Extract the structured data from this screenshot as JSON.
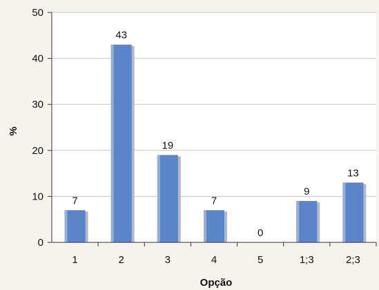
{
  "chart_data": {
    "type": "bar",
    "categories": [
      "1",
      "2",
      "3",
      "4",
      "5",
      "1;3",
      "2;3"
    ],
    "values": [
      7,
      43,
      19,
      7,
      0,
      9,
      13
    ],
    "data_labels": [
      "7",
      "43",
      "19",
      "7",
      "0",
      "9",
      "13"
    ],
    "xlabel": "Opção",
    "ylabel": "%",
    "ylim": [
      0,
      50
    ],
    "yticks": [
      0,
      10,
      20,
      30,
      40,
      50
    ],
    "grid": true,
    "legend": "none",
    "colors": {
      "bar": "#5b85c8",
      "bar_shadow": "#b9b9b9",
      "plot_background": "#ffffff",
      "grid": "#c9c9c9"
    }
  }
}
